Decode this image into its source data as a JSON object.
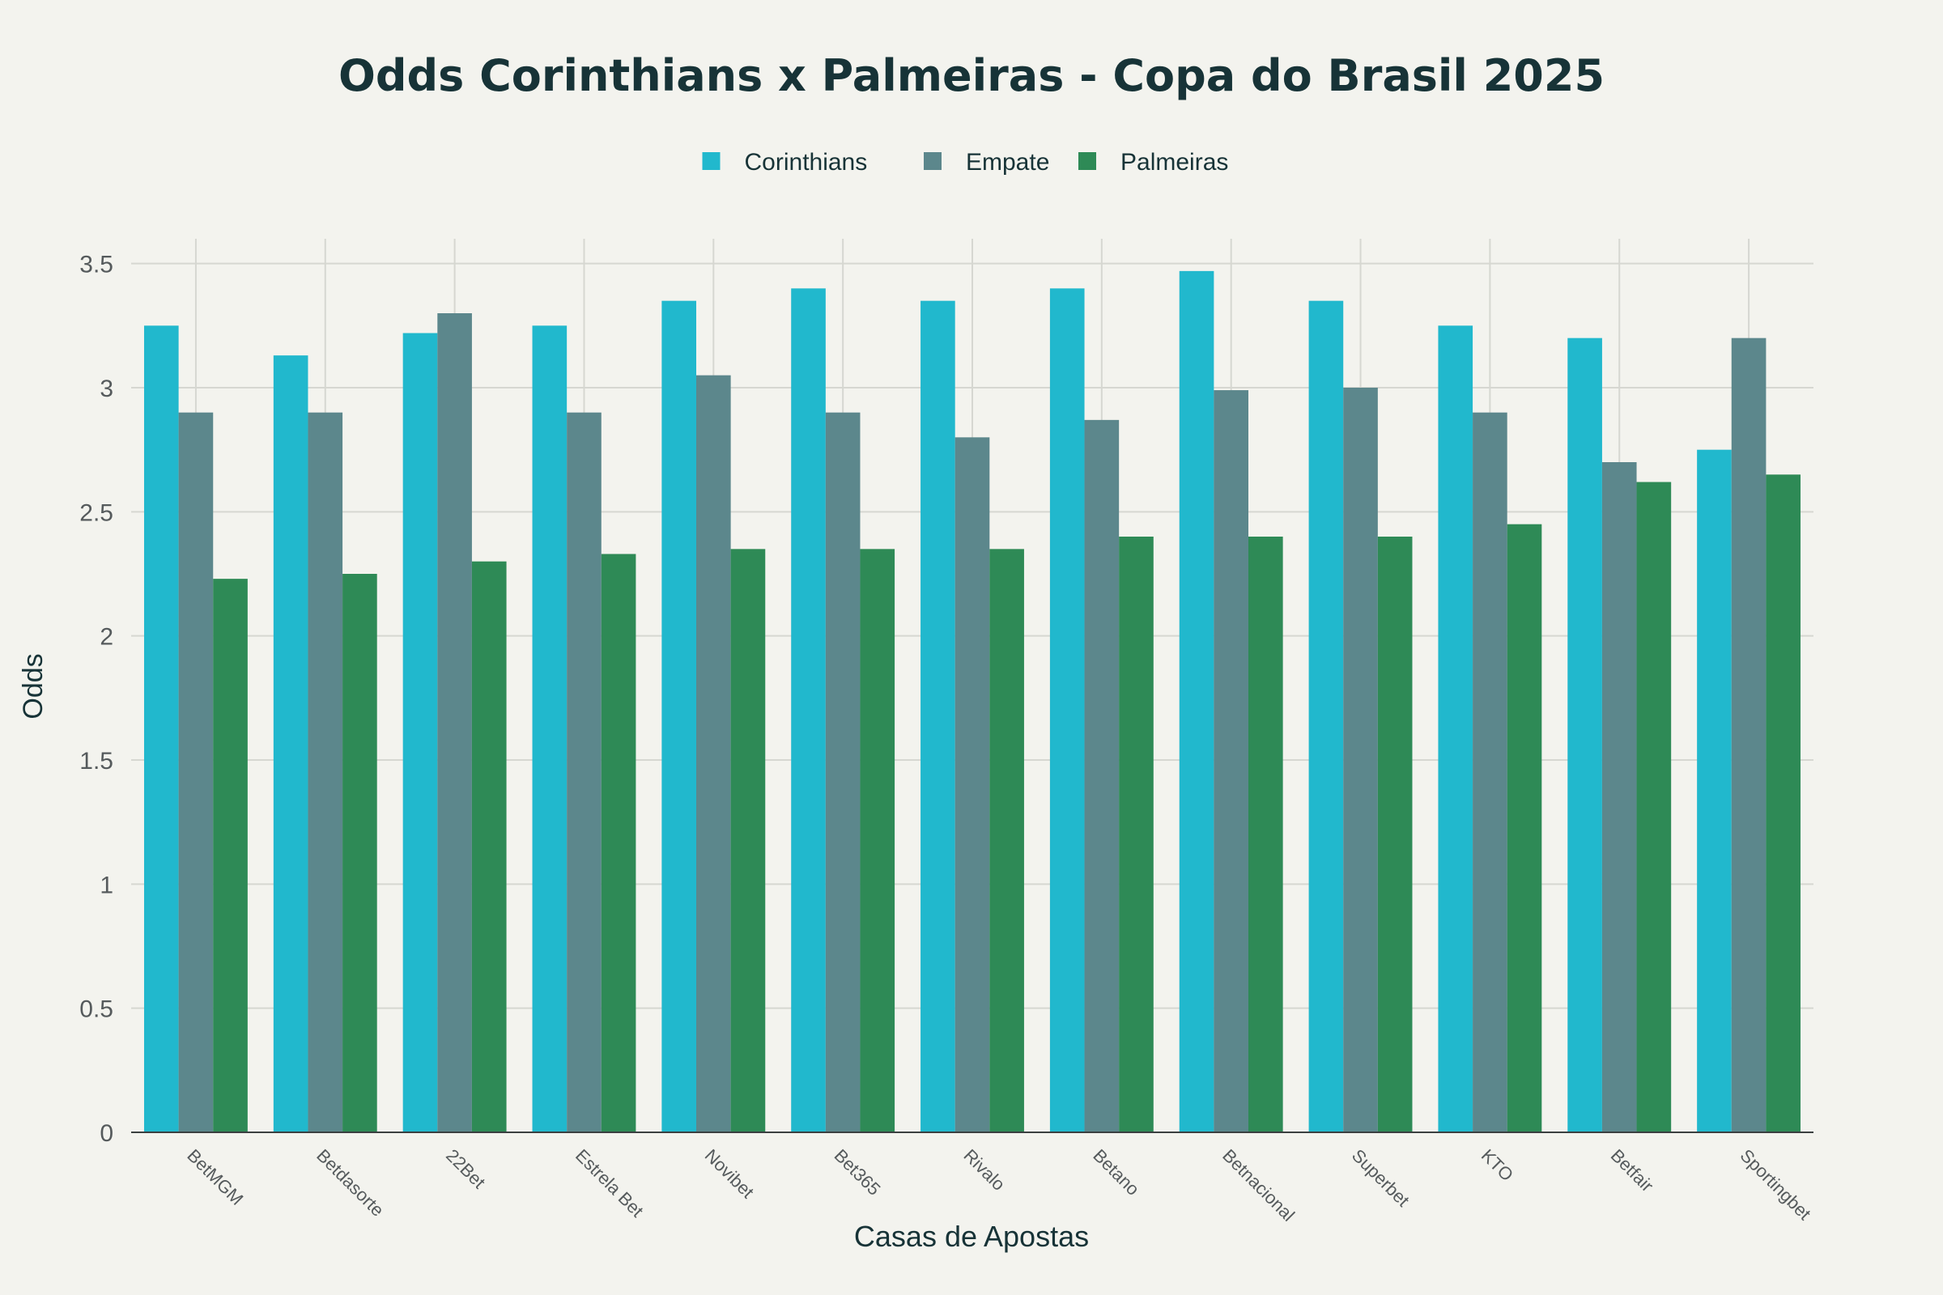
{
  "chart_data": {
    "type": "bar",
    "title": "Odds Corinthians x Palmeiras - Copa do Brasil 2025",
    "xlabel": "Casas de Apostas",
    "ylabel": "Odds",
    "ylim": [
      0,
      3.6
    ],
    "yticks": [
      0,
      0.5,
      1,
      1.5,
      2,
      2.5,
      3,
      3.5
    ],
    "ytick_labels": [
      "0",
      "0.5",
      "1",
      "1.5",
      "2",
      "2.5",
      "3",
      "3.5"
    ],
    "grid": true,
    "legend_position": "top-center",
    "categories": [
      "BetMGM",
      "Betdasorte",
      "22Bet",
      "Estrela Bet",
      "Novibet",
      "Bet365",
      "Rivalo",
      "Betano",
      "Betnacional",
      "Superbet",
      "KTO",
      "Betfair",
      "Sportingbet"
    ],
    "series": [
      {
        "name": "Corinthians",
        "color": "#21b8cd",
        "values": [
          3.25,
          3.13,
          3.22,
          3.25,
          3.35,
          3.4,
          3.35,
          3.4,
          3.47,
          3.35,
          3.25,
          3.2,
          2.75
        ]
      },
      {
        "name": "Empate",
        "color": "#5c878c",
        "values": [
          2.9,
          2.9,
          3.3,
          2.9,
          3.05,
          2.9,
          2.8,
          2.87,
          2.99,
          3.0,
          2.9,
          2.7,
          3.2
        ]
      },
      {
        "name": "Palmeiras",
        "color": "#2e8a56",
        "values": [
          2.23,
          2.25,
          2.3,
          2.33,
          2.35,
          2.35,
          2.35,
          2.4,
          2.4,
          2.4,
          2.45,
          2.62,
          2.65
        ]
      }
    ]
  }
}
